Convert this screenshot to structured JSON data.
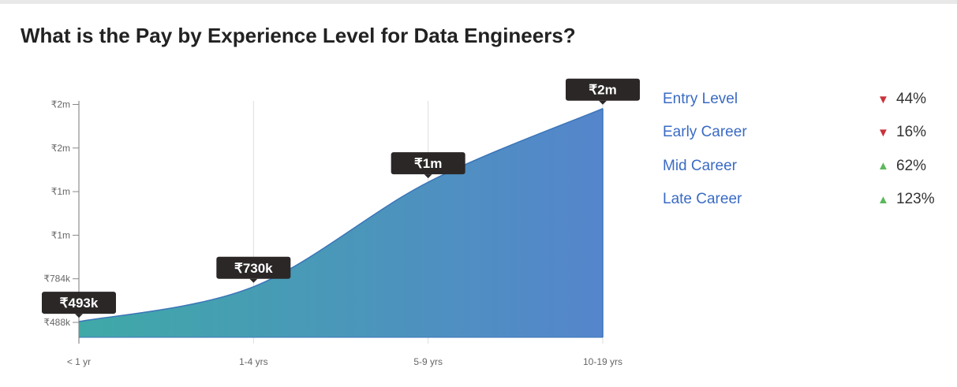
{
  "title": "What is the Pay by Experience Level for Data Engineers?",
  "chart_data": {
    "type": "area",
    "categories": [
      "< 1 yr",
      "1-4 yrs",
      "5-9 yrs",
      "10-19 yrs"
    ],
    "values": [
      493000,
      730000,
      1440000,
      1940000
    ],
    "data_labels": [
      "₹493k",
      "₹730k",
      "₹1m",
      "₹2m"
    ],
    "y_ticks": [
      {
        "value": 488000,
        "label": "₹488k"
      },
      {
        "value": 784000,
        "label": "₹784k"
      },
      {
        "value": 1080000,
        "label": "₹1m"
      },
      {
        "value": 1376000,
        "label": "₹1m"
      },
      {
        "value": 1672000,
        "label": "₹2m"
      },
      {
        "value": 1968000,
        "label": "₹2m"
      }
    ],
    "ylim": [
      385000,
      2000000
    ],
    "grid": "vertical",
    "colors": {
      "start": "#3fa9a7",
      "end": "#5585cc",
      "line": "#3b75b8",
      "tooltip": "#2b2727"
    }
  },
  "legend": [
    {
      "label": "Entry Level",
      "direction": "down",
      "arrow": "▼",
      "value": "44%",
      "color": "#c8333a"
    },
    {
      "label": "Early Career",
      "direction": "down",
      "arrow": "▼",
      "value": "16%",
      "color": "#c8333a"
    },
    {
      "label": "Mid Career",
      "direction": "up",
      "arrow": "▲",
      "value": "62%",
      "color": "#5cb85c"
    },
    {
      "label": "Late Career",
      "direction": "up",
      "arrow": "▲",
      "value": "123%",
      "color": "#5cb85c"
    }
  ]
}
